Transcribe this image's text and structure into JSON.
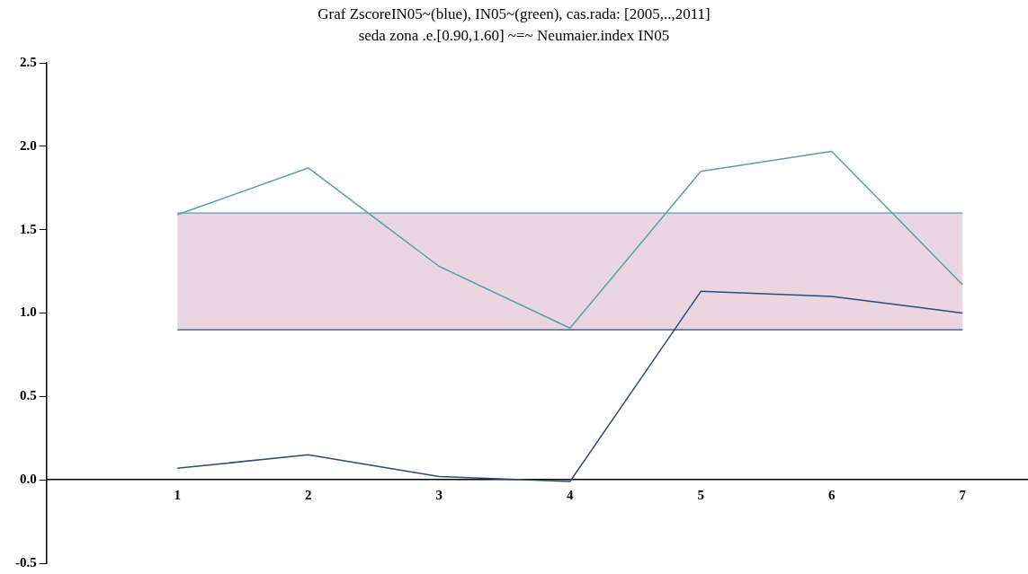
{
  "chart_data": {
    "type": "line",
    "title": "Graf ZscoreIN05~(blue), IN05~(green), cas.rada: [2005,..,2011]",
    "subtitle": "seda zona .e.[0.90,1.60] ~=~ Neumaier.index IN05",
    "x": [
      1,
      2,
      3,
      4,
      5,
      6,
      7
    ],
    "series": [
      {
        "color": "#5f9ea6",
        "values": [
          1.59,
          1.87,
          1.28,
          0.91,
          1.85,
          1.97,
          1.17
        ]
      },
      {
        "color": "#2e4a72",
        "values": [
          0.07,
          0.15,
          0.02,
          -0.01,
          1.13,
          1.1,
          1.0
        ]
      }
    ],
    "bands": [
      {
        "axis": "y",
        "from": 0.9,
        "to": 1.6,
        "color": "#e9d6e2"
      }
    ],
    "ref_lines": [
      {
        "axis": "y",
        "value": 1.6,
        "color": "#5f9ea6"
      },
      {
        "axis": "y",
        "value": 0.9,
        "color": "#2e4a72"
      }
    ],
    "xlim": [
      0,
      7.5
    ],
    "xticks": [
      1,
      2,
      3,
      4,
      5,
      6,
      7
    ],
    "ylim": [
      -0.5,
      2.5
    ],
    "yticks": [
      {
        "value": -0.5,
        "label": "-0.5"
      },
      {
        "value": 0,
        "label": "0.0"
      },
      0.5,
      {
        "value": 1,
        "label": "1.0"
      },
      1.5,
      {
        "value": 2,
        "label": "2.0"
      },
      2.5
    ],
    "grid": false,
    "legend": false,
    "marker": "none",
    "line_style": "solid"
  }
}
